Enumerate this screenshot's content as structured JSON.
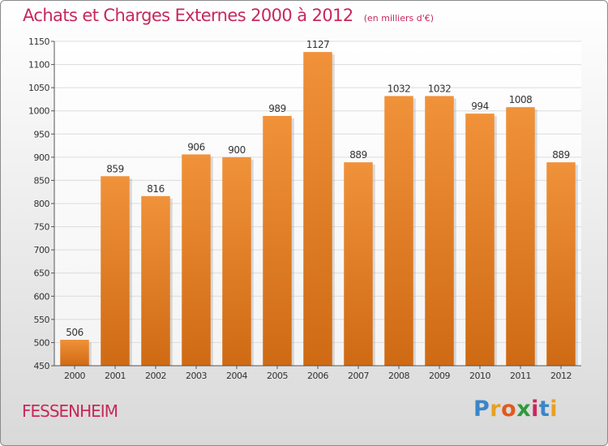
{
  "chart_data": {
    "type": "bar",
    "title": "Achats et Charges Externes 2000 à 2012",
    "subtitle": "(en milliers d'€)",
    "categories": [
      "2000",
      "2001",
      "2002",
      "2003",
      "2004",
      "2005",
      "2006",
      "2007",
      "2008",
      "2009",
      "2010",
      "2011",
      "2012"
    ],
    "values": [
      506,
      859,
      816,
      906,
      900,
      989,
      1127,
      889,
      1032,
      1032,
      994,
      1008,
      889
    ],
    "ylim": [
      450,
      1150
    ],
    "yticks": [
      450,
      500,
      550,
      600,
      650,
      700,
      750,
      800,
      850,
      900,
      950,
      1000,
      1050,
      1100,
      1150
    ],
    "grid": true,
    "bar_color": "#f0923a",
    "bar_color_dark": "#cf6a14"
  },
  "footer": {
    "commune": "FESSENHEIM",
    "logo_letters": [
      "P",
      "r",
      "o",
      "x",
      "i",
      "t",
      "i"
    ],
    "logo_colors": [
      "#3a86c8",
      "#e8a020",
      "#e05a1e",
      "#2e9a3a",
      "#c8285a",
      "#3a86c8",
      "#e8a020"
    ]
  },
  "colors": {
    "title": "#c8285a",
    "axis_text": "#333333",
    "grid": "#dcdcdc"
  }
}
